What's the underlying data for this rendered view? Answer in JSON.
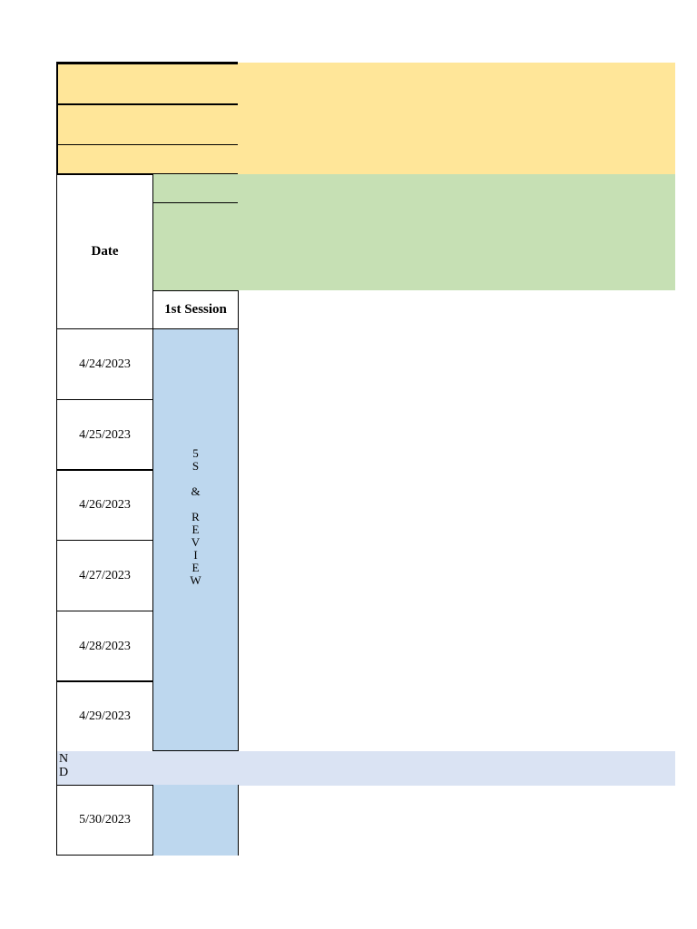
{
  "header": {
    "date_label": "Date",
    "session_label": "1st Session"
  },
  "dates": [
    "4/24/2023",
    "4/25/2023",
    "4/26/2023",
    "4/27/2023",
    "4/28/2023",
    "4/29/2023"
  ],
  "session_block": {
    "letters": [
      "5",
      "S",
      "",
      "&",
      "",
      "R",
      "E",
      "V",
      "I",
      "E",
      "W"
    ]
  },
  "divider_row": {
    "text": "N\nD"
  },
  "last_row": {
    "date": "5/30/2023"
  },
  "colors": {
    "yellow": "#ffe699",
    "green": "#c6e0b4",
    "blue": "#bdd7ee",
    "light_blue": "#dae3f3"
  }
}
